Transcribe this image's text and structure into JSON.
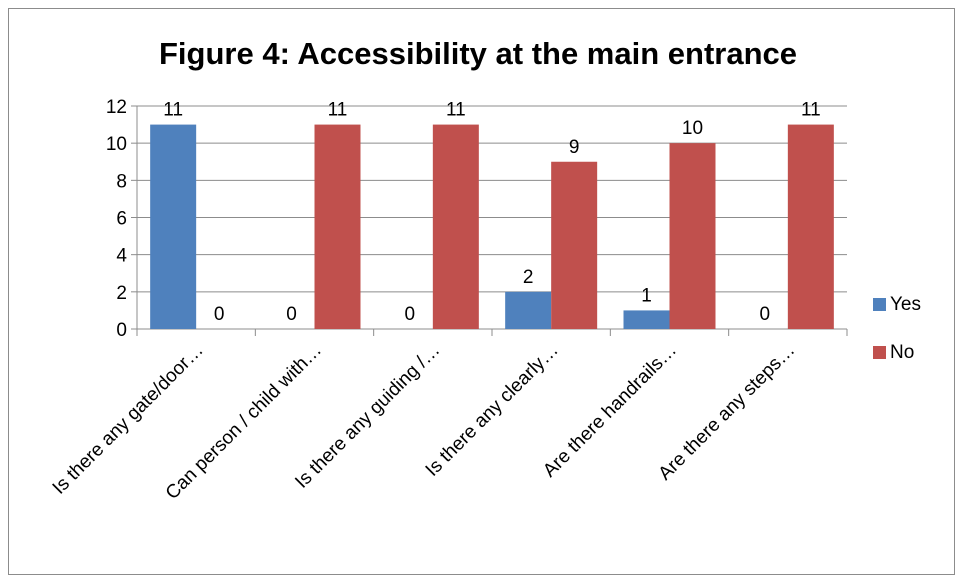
{
  "chart_data": {
    "type": "bar",
    "title": "Figure 4: Accessibility at the main entrance",
    "xlabel": "",
    "ylabel": "",
    "ylim": [
      0,
      12
    ],
    "yticks": [
      0,
      2,
      4,
      6,
      8,
      10,
      12
    ],
    "grid": true,
    "legend_position": "right",
    "categories": [
      "Is there any gate/door…",
      "Can person / child with…",
      "Is there any guiding /…",
      "Is there any clearly…",
      "Are there handrails…",
      "Are there any steps…"
    ],
    "series": [
      {
        "name": "Yes",
        "color": "#4f81bd",
        "values": [
          11,
          0,
          0,
          2,
          1,
          0
        ]
      },
      {
        "name": "No",
        "color": "#c0504d",
        "values": [
          0,
          11,
          11,
          9,
          10,
          11
        ]
      }
    ]
  }
}
